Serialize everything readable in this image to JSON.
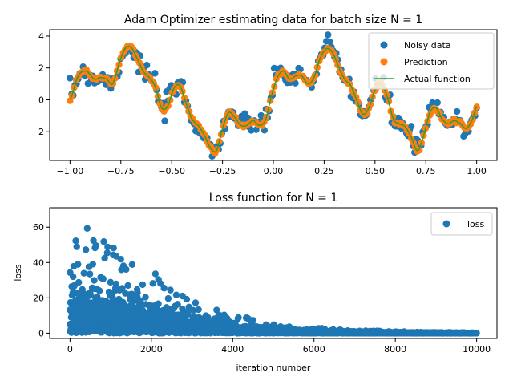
{
  "colors": {
    "noisy": "#1f77b4",
    "prediction": "#ff7f0e",
    "actual": "#2ca02c",
    "loss": "#1f77b4"
  },
  "chart_data": [
    {
      "type": "scatter",
      "title": "Adam Optimizer estimating data for batch size N = 1",
      "xlabel": "",
      "ylabel": "",
      "xlim": [
        -1.1,
        1.1
      ],
      "ylim": [
        -3.8,
        4.4
      ],
      "xticks": [
        -1.0,
        -0.75,
        -0.5,
        -0.25,
        0.0,
        0.25,
        0.5,
        0.75,
        1.0
      ],
      "xtick_labels": [
        "−1.00",
        "−0.75",
        "−0.50",
        "−0.25",
        "0.00",
        "0.25",
        "0.50",
        "0.75",
        "1.00"
      ],
      "yticks": [
        -2,
        0,
        2,
        4
      ],
      "ytick_labels": [
        "−2",
        "0",
        "2",
        "4"
      ],
      "grid": false,
      "legend_position": "top-right",
      "series": [
        {
          "name": "Noisy data",
          "kind": "scatter",
          "noise": 0.35,
          "points": 250
        },
        {
          "name": "Prediction",
          "kind": "scatter",
          "points": 200
        },
        {
          "name": "Actual function",
          "kind": "line"
        }
      ],
      "curve_knots": {
        "x": [
          -1.0,
          -0.96,
          -0.92,
          -0.88,
          -0.85,
          -0.82,
          -0.79,
          -0.76,
          -0.73,
          -0.7,
          -0.67,
          -0.64,
          -0.61,
          -0.58,
          -0.55,
          -0.52,
          -0.49,
          -0.46,
          -0.43,
          -0.4,
          -0.37,
          -0.34,
          -0.31,
          -0.28,
          -0.25,
          -0.22,
          -0.19,
          -0.16,
          -0.13,
          -0.1,
          -0.07,
          -0.04,
          -0.01,
          0.02,
          0.05,
          0.08,
          0.11,
          0.14,
          0.17,
          0.2,
          0.23,
          0.26,
          0.29,
          0.32,
          0.35,
          0.38,
          0.41,
          0.44,
          0.47,
          0.5,
          0.53,
          0.56,
          0.59,
          0.62,
          0.65,
          0.68,
          0.71,
          0.74,
          0.77,
          0.8,
          0.83,
          0.86,
          0.89,
          0.92,
          0.95,
          0.98,
          1.0
        ],
        "y": [
          0.0,
          1.5,
          1.8,
          1.3,
          1.4,
          1.3,
          1.0,
          2.2,
          3.2,
          3.3,
          2.6,
          1.8,
          1.4,
          0.8,
          -0.5,
          -0.4,
          0.7,
          0.9,
          -0.2,
          -1.2,
          -1.6,
          -2.2,
          -3.0,
          -3.2,
          -1.8,
          -0.8,
          -1.1,
          -1.6,
          -1.6,
          -1.3,
          -1.6,
          -1.3,
          0.2,
          1.4,
          1.8,
          1.3,
          1.5,
          1.5,
          1.0,
          1.4,
          2.6,
          3.2,
          3.0,
          2.1,
          1.3,
          0.9,
          0.0,
          -0.9,
          -0.5,
          0.6,
          1.0,
          0.2,
          -1.2,
          -1.5,
          -1.7,
          -2.4,
          -3.2,
          -2.2,
          -0.8,
          -0.5,
          -1.2,
          -1.5,
          -1.3,
          -1.5,
          -1.8,
          -1.2,
          -0.4
        ]
      }
    },
    {
      "type": "scatter",
      "title": "Loss function for N = 1",
      "xlabel": "iteration number",
      "ylabel": "loss",
      "xlim": [
        -500,
        10500
      ],
      "ylim": [
        -3,
        71
      ],
      "xticks": [
        0,
        2000,
        4000,
        6000,
        8000,
        10000
      ],
      "xtick_labels": [
        "0",
        "2000",
        "4000",
        "6000",
        "8000",
        "10000"
      ],
      "yticks": [
        0,
        20,
        40,
        60
      ],
      "ytick_labels": [
        "0",
        "20",
        "40",
        "60"
      ],
      "grid": false,
      "legend_position": "top-right",
      "series": [
        {
          "name": "loss",
          "kind": "scatter",
          "points": 10000
        }
      ]
    }
  ]
}
